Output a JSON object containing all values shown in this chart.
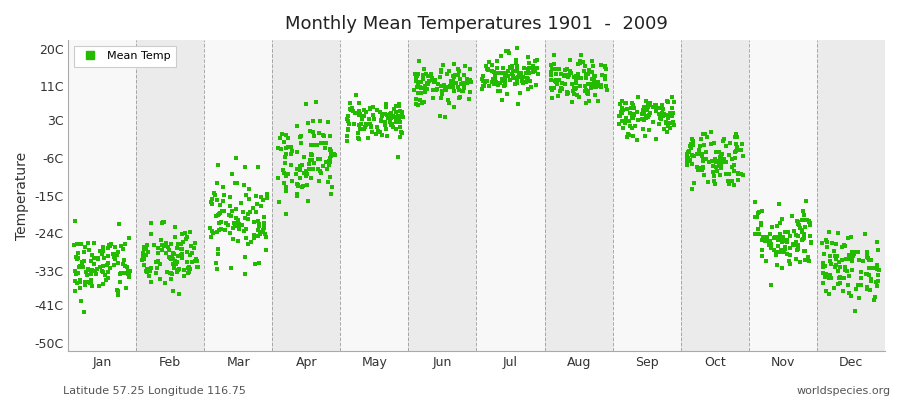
{
  "title": "Monthly Mean Temperatures 1901  -  2009",
  "ylabel": "Temperature",
  "yticks": [
    -50,
    -41,
    -33,
    -24,
    -15,
    -6,
    3,
    11,
    20
  ],
  "ytick_labels": [
    "-50C",
    "-41C",
    "-33C",
    "-24C",
    "-15C",
    "-6C",
    "3C",
    "11C",
    "20C"
  ],
  "ylim": [
    -52,
    22
  ],
  "months": [
    "Jan",
    "Feb",
    "Mar",
    "Apr",
    "May",
    "Jun",
    "Jul",
    "Aug",
    "Sep",
    "Oct",
    "Nov",
    "Dec"
  ],
  "dot_color": "#22bb00",
  "bg_color_light": "#ebebeb",
  "bg_color_dark": "#f8f8f8",
  "grid_color": "#777777",
  "subtitle_left": "Latitude 57.25 Longitude 116.75",
  "subtitle_right": "worldspecies.org",
  "legend_label": "Mean Temp",
  "mean_temps": [
    -32,
    -30,
    -20,
    -6,
    3,
    11,
    14,
    12,
    4,
    -6,
    -25,
    -32
  ],
  "spread": [
    4,
    4,
    5,
    5,
    2.5,
    2.5,
    2.5,
    2.5,
    2.5,
    3.5,
    4,
    4
  ],
  "n_points": 109
}
